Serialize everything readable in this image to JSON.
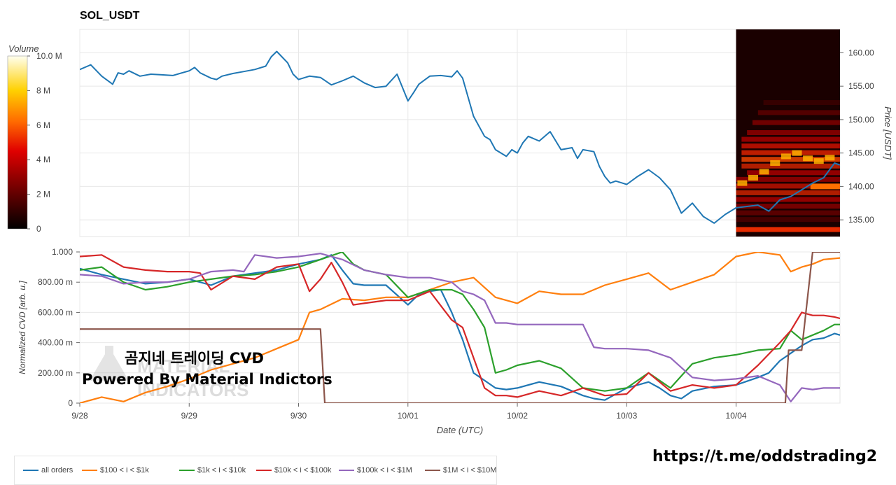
{
  "title": "SOL_USDT",
  "colorbar": {
    "title": "Volume",
    "ticks": [
      {
        "label": "10.0 M",
        "value": 10
      },
      {
        "label": "8 M",
        "value": 8
      },
      {
        "label": "6 M",
        "value": 6
      },
      {
        "label": "4 M",
        "value": 4
      },
      {
        "label": "2 M",
        "value": 2
      },
      {
        "label": "0",
        "value": 0
      }
    ],
    "range": [
      0,
      10
    ]
  },
  "watermark": {
    "title": "곰지네 트레이딩 CVD",
    "subtitle": "Powered By Material Indictors",
    "logo_text": "MATERIAL INDICATORS"
  },
  "telegram_link": "https://t.me/oddstrading2",
  "colors": {
    "all orders": "#1f77b4",
    "$100 < i < $1k": "#ff7f0e",
    "$1k < i < $10k": "#2ca02c",
    "$10k < i < $100k": "#d62728",
    "$100k < i < $1M": "#9467bd",
    "$1M < i < $10M": "#8c564b"
  },
  "chart_data": [
    {
      "type": "line",
      "title": "SOL_USDT",
      "ylabel": "Price [USDT]",
      "ylim": [
        132.5,
        163.5
      ],
      "xlim": [
        0,
        6.95
      ],
      "y_ticks": [
        135,
        140,
        145,
        150,
        155,
        160
      ],
      "y_tick_labels": [
        "135.00",
        "140.00",
        "145.00",
        "150.00",
        "155.00",
        "160.00"
      ],
      "grid": true,
      "heatmap": {
        "x_range": [
          6.0,
          6.95
        ],
        "colorbar": "Volume",
        "note": "order book liquidity heatmap"
      },
      "series": [
        {
          "color": "#1f77b4",
          "x": [
            0,
            0.1,
            0.2,
            0.3,
            0.35,
            0.4,
            0.45,
            0.55,
            0.65,
            0.75,
            0.85,
            1.0,
            1.05,
            1.1,
            1.2,
            1.25,
            1.3,
            1.4,
            1.5,
            1.6,
            1.7,
            1.75,
            1.8,
            1.9,
            1.95,
            2.0,
            2.1,
            2.2,
            2.3,
            2.4,
            2.5,
            2.6,
            2.7,
            2.8,
            2.9,
            3.0,
            3.05,
            3.1,
            3.2,
            3.3,
            3.4,
            3.45,
            3.5,
            3.6,
            3.7,
            3.75,
            3.8,
            3.9,
            3.95,
            4.0,
            4.05,
            4.1,
            4.2,
            4.3,
            4.4,
            4.5,
            4.55,
            4.6,
            4.7,
            4.75,
            4.8,
            4.85,
            4.9,
            5.0,
            5.1,
            5.2,
            5.3,
            5.4,
            5.5,
            5.6,
            5.7,
            5.8,
            5.9,
            6.0,
            6.1,
            6.2,
            6.3,
            6.4,
            6.5,
            6.6,
            6.7,
            6.8,
            6.9,
            6.95
          ],
          "y": [
            157.5,
            158.2,
            156.5,
            155.3,
            157,
            156.8,
            157.3,
            156.5,
            156.8,
            156.7,
            156.6,
            157.3,
            157.8,
            157,
            156.2,
            156,
            156.5,
            156.9,
            157.2,
            157.5,
            158,
            159.4,
            160.2,
            158.5,
            156.8,
            156,
            156.5,
            156.3,
            155.2,
            155.8,
            156.5,
            155.5,
            154.8,
            155,
            156.8,
            152.8,
            154,
            155.3,
            156.5,
            156.6,
            156.4,
            157.3,
            156.2,
            150.5,
            147.5,
            147,
            145.5,
            144.5,
            145.5,
            145,
            146.5,
            147.5,
            146.8,
            148.2,
            145.5,
            145.8,
            144.2,
            145.5,
            145.2,
            143,
            141.5,
            140.5,
            140.8,
            140.3,
            141.5,
            142.5,
            141.3,
            139.5,
            136,
            137.5,
            135.5,
            134.5,
            135.8,
            136.8,
            137,
            137.2,
            136.3,
            138,
            138.5,
            139.5,
            140.5,
            141.3,
            143.5,
            143.2
          ]
        }
      ]
    },
    {
      "type": "line",
      "xlabel": "Date (UTC)",
      "ylabel": "Normalized CVD [arb. u.]",
      "ylim": [
        0,
        1
      ],
      "xlim": [
        0,
        6.95
      ],
      "x_ticks": [
        0,
        1,
        2,
        3,
        4,
        5,
        6
      ],
      "x_tick_labels": [
        "9/28",
        "9/29",
        "9/30",
        "10/01",
        "10/02",
        "10/03",
        "10/04"
      ],
      "y_ticks": [
        0,
        0.2,
        0.4,
        0.6,
        0.8,
        1
      ],
      "y_tick_labels": [
        "0",
        "200.00 m",
        "400.00 m",
        "600.00 m",
        "800.00 m",
        "1.000"
      ],
      "grid": true,
      "legend_position": "bottom",
      "series": [
        {
          "name": "all orders",
          "x": [
            0,
            0.2,
            0.4,
            0.6,
            0.8,
            1.0,
            1.2,
            1.4,
            1.6,
            1.8,
            2.0,
            2.2,
            2.3,
            2.4,
            2.5,
            2.6,
            2.8,
            3.0,
            3.1,
            3.2,
            3.3,
            3.4,
            3.5,
            3.6,
            3.7,
            3.8,
            3.9,
            4.0,
            4.2,
            4.4,
            4.6,
            4.7,
            4.8,
            5.0,
            5.2,
            5.3,
            5.4,
            5.5,
            5.6,
            5.8,
            6.0,
            6.2,
            6.3,
            6.4,
            6.5,
            6.6,
            6.7,
            6.8,
            6.9,
            6.95
          ],
          "y": [
            0.89,
            0.85,
            0.82,
            0.79,
            0.8,
            0.82,
            0.78,
            0.84,
            0.86,
            0.88,
            0.92,
            0.95,
            0.98,
            0.88,
            0.79,
            0.78,
            0.78,
            0.65,
            0.72,
            0.74,
            0.75,
            0.6,
            0.42,
            0.2,
            0.15,
            0.1,
            0.09,
            0.1,
            0.14,
            0.11,
            0.05,
            0.03,
            0.02,
            0.1,
            0.14,
            0.1,
            0.05,
            0.03,
            0.08,
            0.11,
            0.12,
            0.17,
            0.2,
            0.28,
            0.33,
            0.38,
            0.42,
            0.43,
            0.46,
            0.45
          ]
        },
        {
          "name": "$100 < i < $1k",
          "x": [
            0,
            0.2,
            0.4,
            0.6,
            0.8,
            1.0,
            1.2,
            1.4,
            1.6,
            1.8,
            2.0,
            2.1,
            2.2,
            2.4,
            2.6,
            2.8,
            3.0,
            3.2,
            3.4,
            3.6,
            3.8,
            4.0,
            4.2,
            4.4,
            4.6,
            4.8,
            5.0,
            5.2,
            5.4,
            5.6,
            5.8,
            6.0,
            6.2,
            6.4,
            6.5,
            6.6,
            6.7,
            6.8,
            6.95
          ],
          "y": [
            0.0,
            0.04,
            0.01,
            0.07,
            0.11,
            0.16,
            0.22,
            0.26,
            0.3,
            0.36,
            0.42,
            0.6,
            0.62,
            0.69,
            0.68,
            0.7,
            0.7,
            0.75,
            0.8,
            0.83,
            0.7,
            0.66,
            0.74,
            0.72,
            0.72,
            0.78,
            0.82,
            0.86,
            0.75,
            0.8,
            0.85,
            0.97,
            1.0,
            0.98,
            0.87,
            0.9,
            0.92,
            0.95,
            0.96
          ]
        },
        {
          "name": "$1k < i < $10k",
          "x": [
            0,
            0.2,
            0.4,
            0.6,
            0.8,
            1.0,
            1.2,
            1.4,
            1.6,
            1.8,
            2.0,
            2.2,
            2.4,
            2.5,
            2.6,
            2.8,
            3.0,
            3.2,
            3.4,
            3.5,
            3.6,
            3.7,
            3.8,
            3.9,
            4.0,
            4.2,
            4.4,
            4.6,
            4.8,
            5.0,
            5.2,
            5.4,
            5.6,
            5.8,
            6.0,
            6.2,
            6.4,
            6.5,
            6.6,
            6.7,
            6.8,
            6.9,
            6.95
          ],
          "y": [
            0.88,
            0.9,
            0.8,
            0.75,
            0.77,
            0.8,
            0.82,
            0.84,
            0.85,
            0.87,
            0.9,
            0.95,
            1.0,
            0.92,
            0.88,
            0.85,
            0.7,
            0.75,
            0.75,
            0.72,
            0.62,
            0.5,
            0.2,
            0.22,
            0.25,
            0.28,
            0.23,
            0.1,
            0.08,
            0.1,
            0.2,
            0.1,
            0.26,
            0.3,
            0.32,
            0.35,
            0.36,
            0.48,
            0.42,
            0.45,
            0.48,
            0.52,
            0.52
          ]
        },
        {
          "name": "$10k < i < $100k",
          "x": [
            0,
            0.2,
            0.4,
            0.6,
            0.8,
            1.0,
            1.1,
            1.2,
            1.4,
            1.6,
            1.8,
            2.0,
            2.1,
            2.2,
            2.3,
            2.4,
            2.5,
            2.6,
            2.8,
            3.0,
            3.2,
            3.4,
            3.5,
            3.6,
            3.7,
            3.8,
            3.9,
            4.0,
            4.2,
            4.4,
            4.6,
            4.8,
            5.0,
            5.2,
            5.4,
            5.6,
            5.8,
            6.0,
            6.2,
            6.4,
            6.5,
            6.6,
            6.7,
            6.8,
            6.9,
            6.95
          ],
          "y": [
            0.97,
            0.98,
            0.9,
            0.88,
            0.87,
            0.87,
            0.86,
            0.75,
            0.84,
            0.82,
            0.9,
            0.92,
            0.74,
            0.82,
            0.93,
            0.8,
            0.65,
            0.66,
            0.68,
            0.68,
            0.74,
            0.55,
            0.5,
            0.3,
            0.1,
            0.05,
            0.05,
            0.04,
            0.08,
            0.05,
            0.1,
            0.05,
            0.06,
            0.2,
            0.08,
            0.12,
            0.1,
            0.12,
            0.25,
            0.4,
            0.48,
            0.6,
            0.58,
            0.58,
            0.57,
            0.56
          ]
        },
        {
          "name": "$100k < i < $1M",
          "x": [
            0,
            0.2,
            0.4,
            0.6,
            0.8,
            1.0,
            1.2,
            1.4,
            1.5,
            1.6,
            1.8,
            2.0,
            2.2,
            2.4,
            2.6,
            2.8,
            3.0,
            3.2,
            3.4,
            3.5,
            3.6,
            3.7,
            3.8,
            3.9,
            4.0,
            4.2,
            4.4,
            4.6,
            4.7,
            4.8,
            5.0,
            5.2,
            5.4,
            5.6,
            5.8,
            6.0,
            6.2,
            6.4,
            6.5,
            6.6,
            6.7,
            6.8,
            6.95
          ],
          "y": [
            0.85,
            0.84,
            0.79,
            0.8,
            0.8,
            0.82,
            0.87,
            0.88,
            0.87,
            0.98,
            0.96,
            0.97,
            0.99,
            0.95,
            0.88,
            0.85,
            0.83,
            0.83,
            0.8,
            0.74,
            0.72,
            0.68,
            0.53,
            0.53,
            0.52,
            0.52,
            0.52,
            0.52,
            0.37,
            0.36,
            0.36,
            0.35,
            0.3,
            0.17,
            0.15,
            0.16,
            0.18,
            0.12,
            0.01,
            0.1,
            0.09,
            0.1,
            0.1
          ]
        },
        {
          "name": "$1M < i < $10M",
          "x": [
            0,
            2.2,
            2.24,
            2.25,
            6.45,
            6.48,
            6.6,
            6.7,
            6.95
          ],
          "y": [
            0.49,
            0.49,
            0.0,
            0.0,
            0.0,
            0.35,
            0.35,
            1.0,
            1.0
          ]
        }
      ]
    }
  ]
}
